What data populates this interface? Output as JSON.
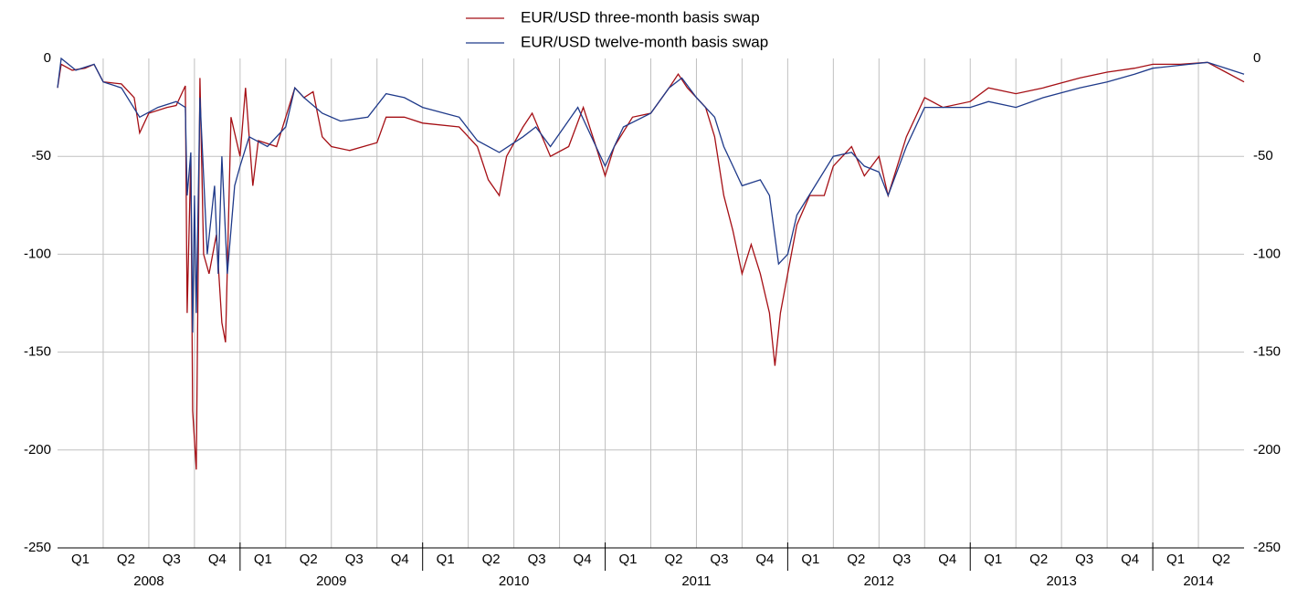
{
  "chart_data": {
    "type": "line",
    "legend": "top",
    "grid": true,
    "ylim": [
      -250,
      0
    ],
    "yticks": [
      0,
      -50,
      -100,
      -150,
      -200,
      -250
    ],
    "xlim": [
      2008.0,
      2014.5
    ],
    "xticks": [
      {
        "value": 2008.125,
        "label": "Q1"
      },
      {
        "value": 2008.375,
        "label": "Q2"
      },
      {
        "value": 2008.625,
        "label": "Q3"
      },
      {
        "value": 2008.875,
        "label": "Q4"
      },
      {
        "value": 2009.125,
        "label": "Q1"
      },
      {
        "value": 2009.375,
        "label": "Q2"
      },
      {
        "value": 2009.625,
        "label": "Q3"
      },
      {
        "value": 2009.875,
        "label": "Q4"
      },
      {
        "value": 2010.125,
        "label": "Q1"
      },
      {
        "value": 2010.375,
        "label": "Q2"
      },
      {
        "value": 2010.625,
        "label": "Q3"
      },
      {
        "value": 2010.875,
        "label": "Q4"
      },
      {
        "value": 2011.125,
        "label": "Q1"
      },
      {
        "value": 2011.375,
        "label": "Q2"
      },
      {
        "value": 2011.625,
        "label": "Q3"
      },
      {
        "value": 2011.875,
        "label": "Q4"
      },
      {
        "value": 2012.125,
        "label": "Q1"
      },
      {
        "value": 2012.375,
        "label": "Q2"
      },
      {
        "value": 2012.625,
        "label": "Q3"
      },
      {
        "value": 2012.875,
        "label": "Q4"
      },
      {
        "value": 2013.125,
        "label": "Q1"
      },
      {
        "value": 2013.375,
        "label": "Q2"
      },
      {
        "value": 2013.625,
        "label": "Q3"
      },
      {
        "value": 2013.875,
        "label": "Q4"
      },
      {
        "value": 2014.125,
        "label": "Q1"
      },
      {
        "value": 2014.375,
        "label": "Q2"
      }
    ],
    "year_labels": [
      {
        "value": 2008.5,
        "label": "2008"
      },
      {
        "value": 2009.5,
        "label": "2009"
      },
      {
        "value": 2010.5,
        "label": "2010"
      },
      {
        "value": 2011.5,
        "label": "2011"
      },
      {
        "value": 2012.5,
        "label": "2012"
      },
      {
        "value": 2013.5,
        "label": "2013"
      },
      {
        "value": 2014.25,
        "label": "2014"
      }
    ],
    "series": [
      {
        "name": "EUR/USD three-month basis swap",
        "color": "#a50f15",
        "x": [
          2008.0,
          2008.02,
          2008.08,
          2008.15,
          2008.2,
          2008.25,
          2008.35,
          2008.42,
          2008.45,
          2008.5,
          2008.6,
          2008.65,
          2008.7,
          2008.71,
          2008.73,
          2008.74,
          2008.76,
          2008.78,
          2008.8,
          2008.83,
          2008.87,
          2008.9,
          2008.92,
          2008.95,
          2009.0,
          2009.03,
          2009.07,
          2009.1,
          2009.2,
          2009.25,
          2009.3,
          2009.35,
          2009.4,
          2009.45,
          2009.5,
          2009.6,
          2009.75,
          2009.8,
          2009.9,
          2010.0,
          2010.2,
          2010.3,
          2010.36,
          2010.42,
          2010.46,
          2010.55,
          2010.6,
          2010.7,
          2010.8,
          2010.88,
          2010.95,
          2011.0,
          2011.05,
          2011.15,
          2011.25,
          2011.35,
          2011.4,
          2011.45,
          2011.55,
          2011.6,
          2011.65,
          2011.7,
          2011.75,
          2011.8,
          2011.85,
          2011.9,
          2011.93,
          2011.96,
          2012.0,
          2012.05,
          2012.12,
          2012.2,
          2012.25,
          2012.35,
          2012.42,
          2012.5,
          2012.55,
          2012.65,
          2012.75,
          2012.85,
          2013.0,
          2013.1,
          2013.25,
          2013.4,
          2013.6,
          2013.75,
          2013.9,
          2014.0,
          2014.15,
          2014.3,
          2014.4,
          2014.5
        ],
        "values": [
          -15,
          -3,
          -6,
          -5,
          -3,
          -12,
          -13,
          -20,
          -38,
          -28,
          -25,
          -24,
          -14,
          -130,
          -50,
          -180,
          -210,
          -10,
          -100,
          -110,
          -90,
          -135,
          -145,
          -30,
          -50,
          -15,
          -65,
          -42,
          -45,
          -30,
          -15,
          -20,
          -17,
          -40,
          -45,
          -47,
          -43,
          -30,
          -30,
          -33,
          -35,
          -45,
          -62,
          -70,
          -50,
          -35,
          -28,
          -50,
          -45,
          -25,
          -45,
          -60,
          -45,
          -30,
          -28,
          -15,
          -8,
          -15,
          -25,
          -40,
          -70,
          -88,
          -110,
          -95,
          -110,
          -130,
          -157,
          -130,
          -110,
          -85,
          -70,
          -70,
          -55,
          -45,
          -60,
          -50,
          -70,
          -40,
          -20,
          -25,
          -22,
          -15,
          -18,
          -15,
          -10,
          -7,
          -5,
          -3,
          -3,
          -2,
          -7,
          -12
        ]
      },
      {
        "name": "EUR/USD twelve-month basis swap",
        "color": "#1f3a8a",
        "x": [
          2008.0,
          2008.02,
          2008.1,
          2008.2,
          2008.25,
          2008.35,
          2008.45,
          2008.55,
          2008.65,
          2008.7,
          2008.71,
          2008.73,
          2008.74,
          2008.75,
          2008.76,
          2008.78,
          2008.82,
          2008.86,
          2008.88,
          2008.9,
          2008.93,
          2008.97,
          2009.0,
          2009.05,
          2009.15,
          2009.25,
          2009.3,
          2009.35,
          2009.45,
          2009.55,
          2009.7,
          2009.8,
          2009.9,
          2010.0,
          2010.2,
          2010.3,
          2010.42,
          2010.55,
          2010.62,
          2010.7,
          2010.85,
          2010.95,
          2011.0,
          2011.1,
          2011.25,
          2011.35,
          2011.42,
          2011.5,
          2011.6,
          2011.65,
          2011.7,
          2011.75,
          2011.85,
          2011.9,
          2011.95,
          2012.0,
          2012.05,
          2012.15,
          2012.25,
          2012.35,
          2012.42,
          2012.5,
          2012.55,
          2012.65,
          2012.75,
          2012.85,
          2013.0,
          2013.1,
          2013.25,
          2013.4,
          2013.6,
          2013.75,
          2013.9,
          2014.0,
          2014.2,
          2014.3,
          2014.4,
          2014.5
        ],
        "values": [
          -15,
          0,
          -6,
          -3,
          -12,
          -15,
          -30,
          -25,
          -22,
          -25,
          -70,
          -48,
          -140,
          -70,
          -130,
          -20,
          -100,
          -65,
          -110,
          -50,
          -110,
          -65,
          -55,
          -40,
          -45,
          -35,
          -15,
          -20,
          -28,
          -32,
          -30,
          -18,
          -20,
          -25,
          -30,
          -42,
          -48,
          -40,
          -35,
          -45,
          -25,
          -45,
          -55,
          -35,
          -28,
          -15,
          -10,
          -20,
          -30,
          -45,
          -55,
          -65,
          -62,
          -70,
          -105,
          -100,
          -80,
          -65,
          -50,
          -48,
          -55,
          -58,
          -70,
          -45,
          -25,
          -25,
          -25,
          -22,
          -25,
          -20,
          -15,
          -12,
          -8,
          -5,
          -3,
          -2,
          -5,
          -8
        ]
      }
    ]
  }
}
